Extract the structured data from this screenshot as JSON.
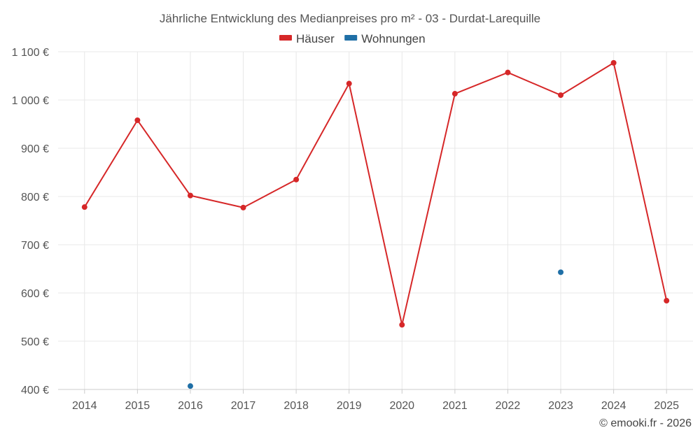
{
  "chart_data": {
    "type": "line",
    "title": "Jährliche Entwicklung des Medianpreises pro m² - 03 - Durdat-Larequille",
    "categories": [
      "2014",
      "2015",
      "2016",
      "2017",
      "2018",
      "2019",
      "2020",
      "2021",
      "2022",
      "2023",
      "2024",
      "2025"
    ],
    "series": [
      {
        "name": "Häuser",
        "color": "#d62728",
        "values": [
          778,
          958,
          802,
          777,
          835,
          1034,
          534,
          1013,
          1057,
          1010,
          1077,
          584
        ]
      },
      {
        "name": "Wohnungen",
        "color": "#1f6fa6",
        "values": [
          null,
          null,
          407,
          null,
          null,
          null,
          null,
          null,
          null,
          643,
          null,
          null
        ]
      }
    ],
    "ylim": [
      400,
      1100
    ],
    "yticks": [
      400,
      500,
      600,
      700,
      800,
      900,
      1000,
      1100
    ],
    "ytick_labels": [
      "400 €",
      "500 €",
      "600 €",
      "700 €",
      "800 €",
      "900 €",
      "1 000 €",
      "1 100 €"
    ],
    "grid": true,
    "legend_position": "top-center",
    "xlabel": "",
    "ylabel": ""
  },
  "credit": "© emooki.fr - 2026"
}
